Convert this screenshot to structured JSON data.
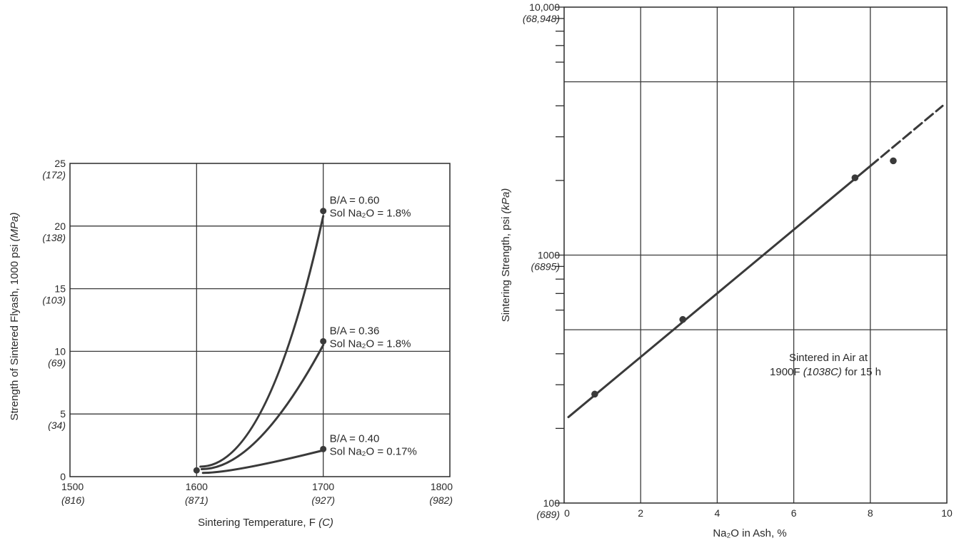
{
  "chart_data": [
    {
      "type": "line",
      "xlabel": "Sintering Temperature, F",
      "xlabel_unit": "(C)",
      "ylabel": "Strength of Sintered Flyash, 1000 psi",
      "ylabel_unit": "(MPa)",
      "xlim": [
        1500,
        1800
      ],
      "ylim": [
        0,
        25
      ],
      "x_ticks": [
        {
          "value": 1500,
          "label": "1500",
          "alt": "(816)"
        },
        {
          "value": 1600,
          "label": "1600",
          "alt": "(871)"
        },
        {
          "value": 1700,
          "label": "1700",
          "alt": "(927)"
        },
        {
          "value": 1800,
          "label": "1800",
          "alt": "(982)"
        }
      ],
      "y_ticks": [
        {
          "value": 0,
          "label": "0",
          "alt": ""
        },
        {
          "value": 5,
          "label": "5",
          "alt": "(34)"
        },
        {
          "value": 10,
          "label": "10",
          "alt": "(69)"
        },
        {
          "value": 15,
          "label": "15",
          "alt": "(103)"
        },
        {
          "value": 20,
          "label": "20",
          "alt": "(138)"
        },
        {
          "value": 25,
          "label": "25",
          "alt": "(172)"
        }
      ],
      "grid": true,
      "series": [
        {
          "line1": "B/A = 0.60",
          "line2": "Sol Na₂O = 1.8%",
          "x": [
            1603,
            1700
          ],
          "y": [
            0.8,
            20.8
          ],
          "end_point": [
            1700,
            21.2
          ],
          "start_point": [
            1600,
            0.5
          ],
          "curvature": 0.55
        },
        {
          "line1": "B/A = 0.36",
          "line2": "Sol Na₂O = 1.8%",
          "x": [
            1604,
            1700
          ],
          "y": [
            0.6,
            10.5
          ],
          "end_point": [
            1700,
            10.8
          ],
          "start_point": null,
          "curvature": 0.45
        },
        {
          "line1": "B/A = 0.40",
          "line2": "Sol Na₂O = 0.17%",
          "x": [
            1605,
            1700
          ],
          "y": [
            0.3,
            2.1
          ],
          "end_point": [
            1700,
            2.2
          ],
          "start_point": null,
          "curvature": 0.25
        }
      ]
    },
    {
      "type": "scatter",
      "xlabel": "Na₂O in Ash, %",
      "ylabel": "Sintering Strength, psi",
      "ylabel_unit": "(kPa)",
      "xlim": [
        0,
        10
      ],
      "ylim": [
        100,
        10000
      ],
      "y_scale": "log",
      "x_ticks": [
        {
          "value": 0,
          "label": "0"
        },
        {
          "value": 2,
          "label": "2"
        },
        {
          "value": 4,
          "label": "4"
        },
        {
          "value": 6,
          "label": "6"
        },
        {
          "value": 8,
          "label": "8"
        },
        {
          "value": 10,
          "label": "10"
        }
      ],
      "y_ticks": [
        {
          "value": 100,
          "label": "100",
          "alt": "(689)"
        },
        {
          "value": 1000,
          "label": "1000",
          "alt": "(6895)"
        },
        {
          "value": 10000,
          "label": "10,000",
          "alt": "(68,948)"
        }
      ],
      "y_minor_ticks": [
        200,
        300,
        400,
        600,
        700,
        800,
        900,
        2000,
        3000,
        4000,
        6000,
        7000,
        8000,
        9000
      ],
      "y_grid": [
        100,
        500,
        1000,
        5000,
        10000
      ],
      "grid": true,
      "points": [
        {
          "x": 0.8,
          "y": 275
        },
        {
          "x": 3.1,
          "y": 550
        },
        {
          "x": 7.6,
          "y": 2050
        },
        {
          "x": 8.6,
          "y": 2400
        }
      ],
      "trend": {
        "x": [
          0,
          10
        ],
        "y": [
          215,
          4130
        ],
        "dashed_from_x": 8.0
      },
      "annotation_line1": "Sintered in Air at",
      "annotation_line2_a": "1900F",
      "annotation_line2_b": "(1038C)",
      "annotation_line2_c": "for 15 h"
    }
  ]
}
